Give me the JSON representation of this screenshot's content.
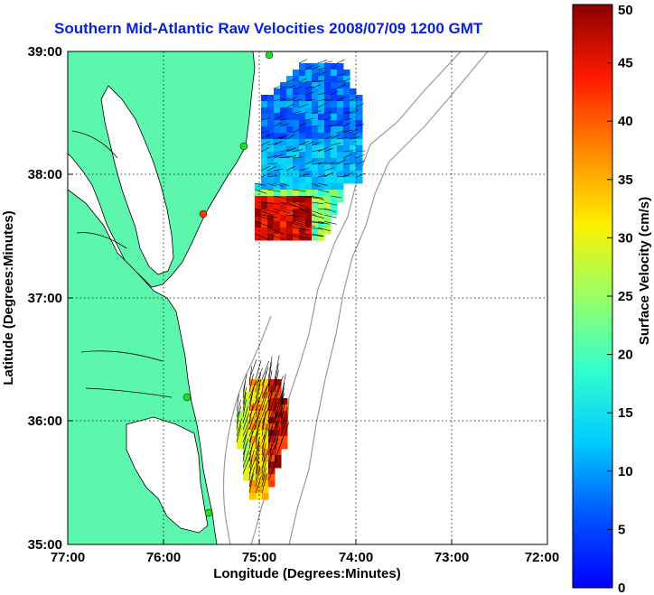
{
  "map": {
    "title": "Southern Mid-Atlantic Raw Velocities 2008/07/09 1200 GMT",
    "xlabel": "Longitude (Degrees:Minutes)",
    "ylabel": "Latitude (Degrees:Minutes)",
    "x_ticks": [
      "77:00",
      "76:00",
      "75:00",
      "74:00",
      "73:00",
      "72:00"
    ],
    "y_ticks": [
      "39:00",
      "38:00",
      "37:00",
      "36:00",
      "35:00"
    ],
    "colors": {
      "land": "#5cf7ad",
      "title": "#0a21d8",
      "grid": "#000000",
      "isobath": "#9a9a9a"
    }
  },
  "colorbar": {
    "label": "Surface Velocity (cm/s)",
    "ticks": [
      "50",
      "45",
      "40",
      "35",
      "30",
      "25",
      "20",
      "15",
      "10",
      "5",
      "0"
    ],
    "range": [
      0,
      50
    ],
    "colormap": "jet"
  }
}
